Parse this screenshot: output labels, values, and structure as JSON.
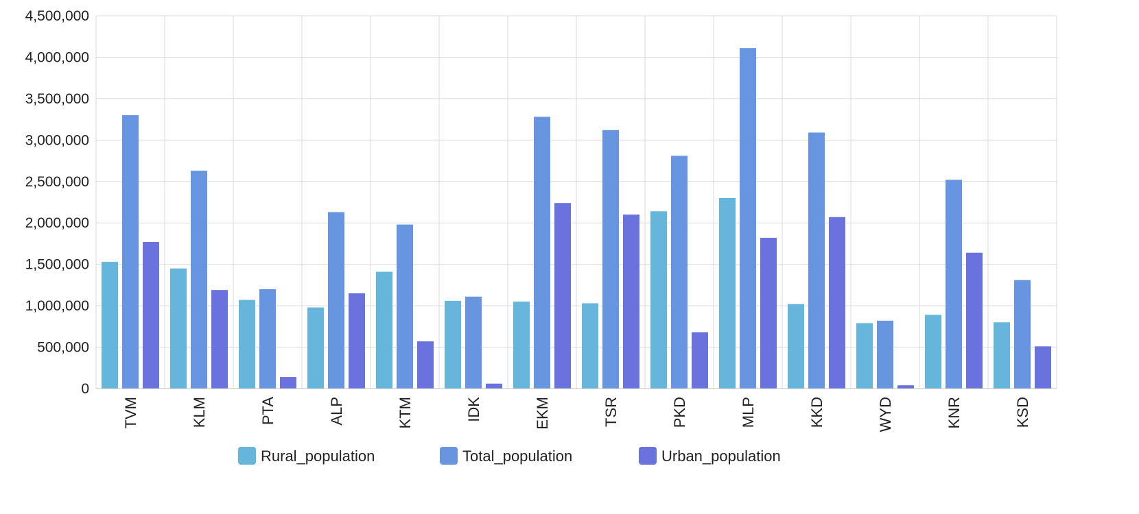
{
  "chart_data": {
    "type": "bar",
    "title": "",
    "xlabel": "",
    "ylabel": "",
    "categories": [
      "TVM",
      "KLM",
      "PTA",
      "ALP",
      "KTM",
      "IDK",
      "EKM",
      "TSR",
      "PKD",
      "MLP",
      "KKD",
      "WYD",
      "KNR",
      "KSD"
    ],
    "series": [
      {
        "name": "Rural_population",
        "color": "#66b6dc",
        "values": [
          1530000,
          1450000,
          1070000,
          980000,
          1410000,
          1060000,
          1050000,
          1030000,
          2140000,
          2300000,
          1020000,
          790000,
          890000,
          800000
        ]
      },
      {
        "name": "Total_population",
        "color": "#6895df",
        "values": [
          3300000,
          2630000,
          1200000,
          2130000,
          1980000,
          1110000,
          3280000,
          3120000,
          2810000,
          4110000,
          3090000,
          820000,
          2520000,
          1310000
        ]
      },
      {
        "name": "Urban_population",
        "color": "#6972dd",
        "values": [
          1770000,
          1190000,
          140000,
          1150000,
          570000,
          60000,
          2240000,
          2100000,
          680000,
          1820000,
          2070000,
          40000,
          1640000,
          510000
        ]
      }
    ],
    "ylim": [
      0,
      4500000
    ],
    "yticks": [
      0,
      500000,
      1000000,
      1500000,
      2000000,
      2500000,
      3000000,
      3500000,
      4000000,
      4500000
    ],
    "ytick_labels": [
      "0",
      "500,000",
      "1,000,000",
      "1,500,000",
      "2,000,000",
      "2,500,000",
      "3,000,000",
      "3,500,000",
      "4,000,000",
      "4,500,000"
    ],
    "grid": true,
    "legend_position": "bottom"
  }
}
